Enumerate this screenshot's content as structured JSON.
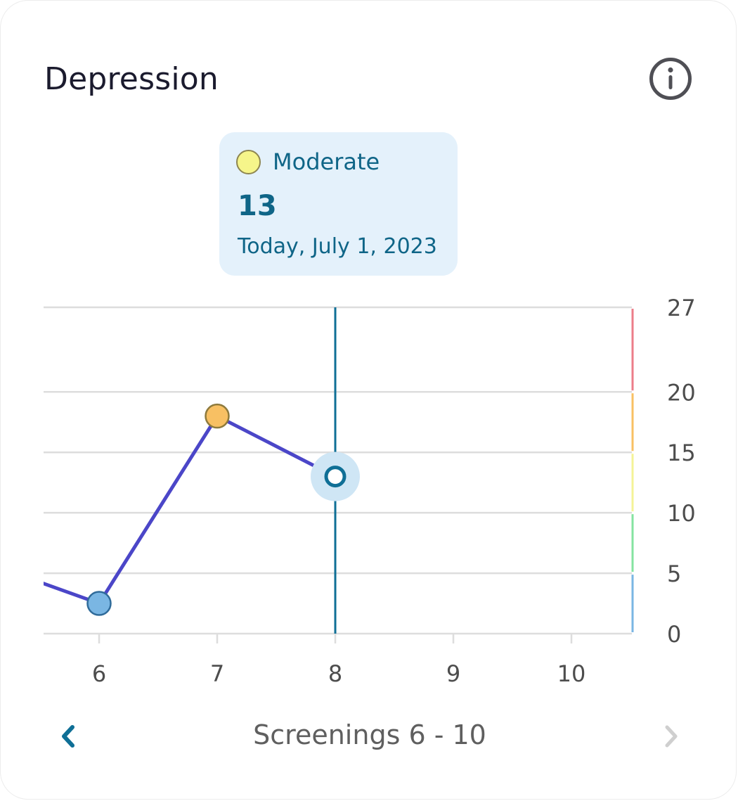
{
  "card": {
    "title": "Depression"
  },
  "tooltip": {
    "severity": "Moderate",
    "severity_color": "#f6f58a",
    "score": "13",
    "date": "Today, July 1, 2023"
  },
  "footer": {
    "label": "Screenings 6 - 10"
  },
  "icons": {
    "info": "info-icon",
    "prev": "chevron-left-icon",
    "next": "chevron-right-icon"
  },
  "colors": {
    "line": "#4b46c8",
    "selection": "#0f6f96",
    "grid": "#dddddd",
    "nav_active": "#0f6f96",
    "nav_disabled": "#cfcfcf"
  },
  "chart_data": {
    "type": "line",
    "x": [
      5,
      6,
      7,
      8
    ],
    "xticks": [
      6,
      7,
      8,
      9,
      10
    ],
    "xlim": [
      5.55,
      10.5
    ],
    "ylim": [
      0,
      27
    ],
    "yticks": [
      0,
      5,
      10,
      15,
      20,
      27
    ],
    "series": [
      {
        "values": [
          6,
          2.5,
          18,
          13
        ],
        "point_colors": [
          null,
          "#7ab6e3",
          "#f8c063",
          null
        ]
      }
    ],
    "selected_x": 8,
    "severity_bands": [
      {
        "from": 0,
        "to": 5,
        "color": "#7ab6e3"
      },
      {
        "from": 5,
        "to": 10,
        "color": "#85e3a0"
      },
      {
        "from": 10,
        "to": 15,
        "color": "#f4f397"
      },
      {
        "from": 15,
        "to": 20,
        "color": "#f8c063"
      },
      {
        "from": 20,
        "to": 27,
        "color": "#ec7d89"
      }
    ]
  }
}
